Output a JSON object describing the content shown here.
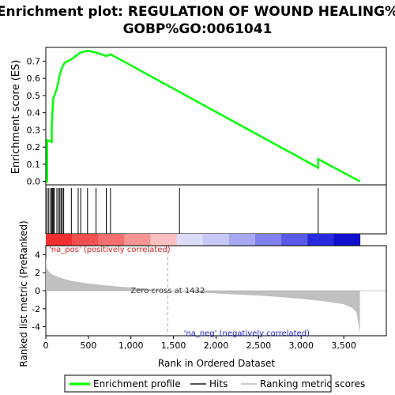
{
  "chart_data": [
    {
      "type": "line",
      "title": "Enrichment plot: REGULATION OF WOUND HEALING%",
      "subtitle": "GOBP%GO:0061041",
      "ylabel": "Enrichment score (ES)",
      "ylim": [
        -0.02,
        0.78
      ],
      "yticks": [
        "0.0",
        "0.1",
        "0.2",
        "0.3",
        "0.4",
        "0.5",
        "0.6",
        "0.7"
      ],
      "color": "#00ff00",
      "series": [
        {
          "name": "Enrichment profile",
          "x": [
            0,
            15,
            15,
            70,
            70,
            85,
            85,
            130,
            130,
            160,
            160,
            180,
            180,
            220,
            220,
            300,
            300,
            380,
            380,
            410,
            410,
            490,
            490,
            590,
            590,
            710,
            710,
            760,
            760,
            3200,
            3200,
            3690
          ],
          "y": [
            0.0,
            0.0,
            0.24,
            0.23,
            0.32,
            0.48,
            0.48,
            0.54,
            0.54,
            0.61,
            0.61,
            0.65,
            0.65,
            0.69,
            0.69,
            0.71,
            0.71,
            0.74,
            0.74,
            0.75,
            0.75,
            0.76,
            0.76,
            0.75,
            0.75,
            0.73,
            0.73,
            0.74,
            0.74,
            0.08,
            0.13,
            0.0
          ]
        }
      ]
    },
    {
      "type": "table",
      "name_hits": "Hits",
      "hits": [
        15,
        35,
        55,
        70,
        80,
        90,
        100,
        130,
        150,
        165,
        180,
        195,
        210,
        300,
        380,
        410,
        490,
        590,
        710,
        760,
        1570,
        3200
      ]
    },
    {
      "type": "area",
      "ylabel": "Ranked list metric (PreRanked)",
      "xlabel": "Rank in Ordered Dataset",
      "xlim": [
        0,
        4000
      ],
      "ylim": [
        -5,
        5
      ],
      "xticks": [
        "0",
        "500",
        "1,000",
        "1,500",
        "2,000",
        "2,500",
        "3,000",
        "3,500"
      ],
      "yticks": [
        "4",
        "2",
        "0",
        "-2",
        "-4"
      ],
      "zero_cross_label": "Zero cross at 1432",
      "zero_cross": 1432,
      "pos_label": "'na_pos' (positively correlated)",
      "neg_label": "'na_neg' (negatively correlated)",
      "fill_color": "#c0c0c0",
      "series": [
        {
          "name": "Ranking metric scores",
          "x": [
            0,
            10,
            30,
            60,
            100,
            150,
            200,
            300,
            400,
            500,
            700,
            1000,
            1432,
            1800,
            2200,
            2600,
            3000,
            3300,
            3500,
            3600,
            3650,
            3690
          ],
          "y": [
            3.8,
            2.6,
            2.2,
            1.9,
            1.7,
            1.5,
            1.35,
            1.1,
            0.95,
            0.8,
            0.6,
            0.35,
            0.0,
            -0.2,
            -0.4,
            -0.6,
            -0.9,
            -1.2,
            -1.5,
            -1.9,
            -2.4,
            -4.8
          ]
        }
      ]
    }
  ],
  "colorbar": [
    "#f03030",
    "#f25050",
    "#f47070",
    "#f79595",
    "#fbc0c0",
    "#dcdcf8",
    "#c8c8f6",
    "#a8a8f2",
    "#8080ee",
    "#5a5ae8",
    "#2a2add",
    "#1010cc"
  ],
  "legend": {
    "items": [
      "Enrichment profile",
      "Hits",
      "Ranking metric scores"
    ],
    "colors": [
      "#00ff00",
      "#000000",
      "#cccccc"
    ]
  }
}
